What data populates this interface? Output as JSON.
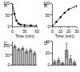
{
  "chart_data": [
    {
      "type": "line",
      "title": "A",
      "x_label": "Time (min)",
      "x": [
        0,
        5,
        10,
        15,
        20,
        30,
        45,
        60
      ],
      "values": [
        100,
        55,
        25,
        12,
        8,
        5,
        4,
        3
      ],
      "color": "#000000",
      "marker": "circle",
      "line_style": "solid",
      "xlim": [
        0,
        60
      ],
      "xticks": [
        0,
        30,
        60
      ],
      "ylim": [
        0,
        100
      ],
      "yticks": [
        0,
        50,
        100
      ],
      "grid": false
    },
    {
      "type": "line",
      "title": "B",
      "x_label": "Time (min)",
      "x": [
        0,
        5,
        10,
        15,
        20,
        30
      ],
      "values": [
        0,
        20,
        40,
        60,
        75,
        90
      ],
      "color": "#000000",
      "marker": "circle",
      "line_style": "solid",
      "xlim": [
        0,
        30
      ],
      "xticks": [
        0,
        10,
        20,
        30
      ],
      "ylim": [
        0,
        100
      ],
      "yticks": [
        0,
        50,
        100
      ],
      "grid": false
    },
    {
      "type": "bar",
      "title": "C",
      "categories": [
        null,
        null,
        null,
        null,
        null,
        null
      ],
      "values": [
        95,
        80,
        85,
        70,
        75,
        60
      ],
      "errors": [
        8,
        6,
        7,
        10,
        8,
        9
      ],
      "color": "#bbbbbb",
      "ylim": [
        0,
        120
      ],
      "yticks": [
        0,
        50,
        100
      ],
      "grid": false,
      "tick_labels": "y"
    },
    {
      "type": "bar",
      "title": "D",
      "categories": [
        null,
        null,
        null,
        null,
        null,
        null
      ],
      "values": [
        5,
        8,
        3,
        25,
        10,
        4
      ],
      "errors": [
        3,
        4,
        2,
        12,
        6,
        3
      ],
      "color": "#bbbbbb",
      "ylim": [
        0,
        40
      ],
      "yticks": [
        0,
        20,
        40
      ],
      "grid": false,
      "tick_labels": "y"
    }
  ]
}
